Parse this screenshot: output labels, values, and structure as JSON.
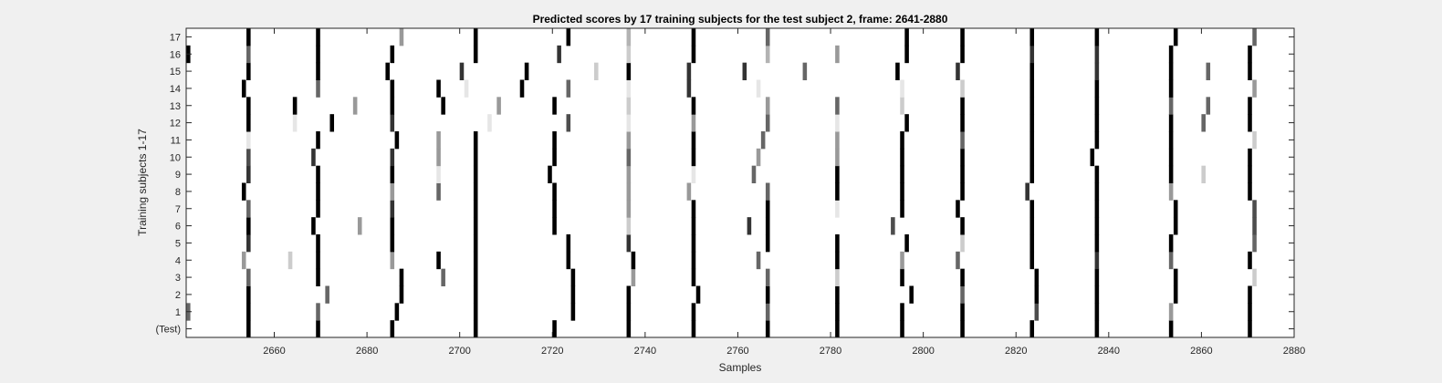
{
  "chart_data": {
    "type": "heatmap",
    "title": "Predicted scores by 17 training subjects for the test subject 2, frame: 2641-2880",
    "xlabel": "Samples",
    "ylabel": "Training subjects 1-17",
    "xlim": [
      2641,
      2880
    ],
    "xticks": [
      2660,
      2680,
      2700,
      2720,
      2740,
      2760,
      2780,
      2800,
      2820,
      2840,
      2860,
      2880
    ],
    "row_labels": [
      "(Test)",
      "1",
      "2",
      "3",
      "4",
      "5",
      "6",
      "7",
      "8",
      "9",
      "10",
      "11",
      "12",
      "13",
      "14",
      "15",
      "16",
      "17"
    ],
    "colormap": "gray (0 = white, 1 = black)",
    "cells": [
      {
        "row": "(Test)",
        "marks": [
          [
            2654,
            1
          ],
          [
            2669,
            1
          ],
          [
            2685,
            1
          ],
          [
            2703,
            1
          ],
          [
            2720,
            1
          ],
          [
            2736,
            1
          ],
          [
            2750,
            1
          ],
          [
            2766,
            1
          ],
          [
            2781,
            1
          ],
          [
            2795,
            1
          ],
          [
            2808,
            1
          ],
          [
            2823,
            1
          ],
          [
            2837,
            1
          ],
          [
            2853,
            1
          ],
          [
            2870,
            1
          ]
        ]
      },
      {
        "row": "1",
        "marks": [
          [
            2641,
            0.6
          ],
          [
            2654,
            1
          ],
          [
            2669,
            0.6
          ],
          [
            2686,
            1
          ],
          [
            2703,
            1
          ],
          [
            2724,
            1
          ],
          [
            2736,
            1
          ],
          [
            2750,
            1
          ],
          [
            2766,
            0.6
          ],
          [
            2781,
            1
          ],
          [
            2795,
            1
          ],
          [
            2808,
            1
          ],
          [
            2824,
            0.7
          ],
          [
            2837,
            1
          ],
          [
            2853,
            0.4
          ],
          [
            2870,
            1
          ]
        ]
      },
      {
        "row": "2",
        "marks": [
          [
            2654,
            1
          ],
          [
            2671,
            0.6
          ],
          [
            2687,
            1
          ],
          [
            2703,
            1
          ],
          [
            2724,
            1
          ],
          [
            2736,
            1
          ],
          [
            2751,
            1
          ],
          [
            2766,
            1
          ],
          [
            2781,
            1
          ],
          [
            2797,
            1
          ],
          [
            2808,
            0.6
          ],
          [
            2824,
            1
          ],
          [
            2837,
            1
          ],
          [
            2854,
            1
          ],
          [
            2870,
            1
          ]
        ]
      },
      {
        "row": "3",
        "marks": [
          [
            2654,
            0.6
          ],
          [
            2669,
            1
          ],
          [
            2687,
            1
          ],
          [
            2696,
            0.6
          ],
          [
            2703,
            1
          ],
          [
            2724,
            1
          ],
          [
            2737,
            0.4
          ],
          [
            2750,
            1
          ],
          [
            2766,
            0.6
          ],
          [
            2781,
            0.2
          ],
          [
            2795,
            1
          ],
          [
            2808,
            1
          ],
          [
            2824,
            1
          ],
          [
            2837,
            1
          ],
          [
            2854,
            1
          ],
          [
            2871,
            0.2
          ]
        ]
      },
      {
        "row": "4",
        "marks": [
          [
            2653,
            0.4
          ],
          [
            2663,
            0.2
          ],
          [
            2669,
            1
          ],
          [
            2685,
            0.4
          ],
          [
            2695,
            1
          ],
          [
            2703,
            1
          ],
          [
            2723,
            1
          ],
          [
            2737,
            1
          ],
          [
            2750,
            1
          ],
          [
            2764,
            0.6
          ],
          [
            2781,
            1
          ],
          [
            2795,
            0.4
          ],
          [
            2807,
            0.6
          ],
          [
            2823,
            1
          ],
          [
            2837,
            0.8
          ],
          [
            2853,
            0.6
          ],
          [
            2870,
            1
          ]
        ]
      },
      {
        "row": "5",
        "marks": [
          [
            2654,
            0.8
          ],
          [
            2669,
            1
          ],
          [
            2685,
            1
          ],
          [
            2703,
            1
          ],
          [
            2723,
            1
          ],
          [
            2736,
            0.8
          ],
          [
            2750,
            1
          ],
          [
            2766,
            1
          ],
          [
            2781,
            1
          ],
          [
            2796,
            1
          ],
          [
            2808,
            0.2
          ],
          [
            2823,
            1
          ],
          [
            2837,
            1
          ],
          [
            2853,
            1
          ],
          [
            2871,
            0.6
          ]
        ]
      },
      {
        "row": "6",
        "marks": [
          [
            2654,
            1
          ],
          [
            2668,
            1
          ],
          [
            2678,
            0.4
          ],
          [
            2685,
            1
          ],
          [
            2703,
            1
          ],
          [
            2720,
            1
          ],
          [
            2736,
            0.2
          ],
          [
            2750,
            1
          ],
          [
            2762,
            0.8
          ],
          [
            2766,
            1
          ],
          [
            2793,
            0.7
          ],
          [
            2808,
            1
          ],
          [
            2823,
            1
          ],
          [
            2837,
            1
          ],
          [
            2854,
            1
          ],
          [
            2871,
            0.7
          ]
        ]
      },
      {
        "row": "7",
        "marks": [
          [
            2654,
            0.6
          ],
          [
            2669,
            1
          ],
          [
            2685,
            0.8
          ],
          [
            2703,
            1
          ],
          [
            2720,
            1
          ],
          [
            2736,
            0.4
          ],
          [
            2750,
            1
          ],
          [
            2766,
            1
          ],
          [
            2781,
            0.1
          ],
          [
            2795,
            1
          ],
          [
            2807,
            1
          ],
          [
            2823,
            1
          ],
          [
            2837,
            1
          ],
          [
            2854,
            1
          ],
          [
            2871,
            0.7
          ]
        ]
      },
      {
        "row": "8",
        "marks": [
          [
            2653,
            1
          ],
          [
            2669,
            1
          ],
          [
            2685,
            0.4
          ],
          [
            2695,
            0.6
          ],
          [
            2703,
            1
          ],
          [
            2720,
            1
          ],
          [
            2736,
            0.4
          ],
          [
            2749,
            0.4
          ],
          [
            2766,
            0.6
          ],
          [
            2781,
            1
          ],
          [
            2795,
            1
          ],
          [
            2808,
            1
          ],
          [
            2822,
            0.8
          ],
          [
            2837,
            1
          ],
          [
            2853,
            0.4
          ],
          [
            2870,
            1
          ]
        ]
      },
      {
        "row": "9",
        "marks": [
          [
            2654,
            0.8
          ],
          [
            2669,
            1
          ],
          [
            2685,
            1
          ],
          [
            2695,
            0.1
          ],
          [
            2703,
            1
          ],
          [
            2719,
            1
          ],
          [
            2736,
            0.4
          ],
          [
            2750,
            0.1
          ],
          [
            2763,
            0.6
          ],
          [
            2781,
            1
          ],
          [
            2795,
            1
          ],
          [
            2808,
            1
          ],
          [
            2823,
            1
          ],
          [
            2837,
            1
          ],
          [
            2853,
            1
          ],
          [
            2860,
            0.2
          ],
          [
            2870,
            1
          ]
        ]
      },
      {
        "row": "10",
        "marks": [
          [
            2654,
            0.7
          ],
          [
            2668,
            0.8
          ],
          [
            2685,
            0.8
          ],
          [
            2695,
            0.4
          ],
          [
            2703,
            1
          ],
          [
            2720,
            1
          ],
          [
            2736,
            0.6
          ],
          [
            2750,
            1
          ],
          [
            2764,
            0.4
          ],
          [
            2781,
            0.4
          ],
          [
            2795,
            1
          ],
          [
            2808,
            1
          ],
          [
            2823,
            1
          ],
          [
            2836,
            1
          ],
          [
            2853,
            1
          ],
          [
            2870,
            1
          ]
        ]
      },
      {
        "row": "11",
        "marks": [
          [
            2654,
            0.1
          ],
          [
            2669,
            1
          ],
          [
            2686,
            1
          ],
          [
            2695,
            0.4
          ],
          [
            2703,
            1
          ],
          [
            2720,
            1
          ],
          [
            2736,
            0.4
          ],
          [
            2750,
            1
          ],
          [
            2765,
            0.6
          ],
          [
            2781,
            0.4
          ],
          [
            2795,
            1
          ],
          [
            2808,
            0.6
          ],
          [
            2823,
            1
          ],
          [
            2837,
            1
          ],
          [
            2853,
            1
          ],
          [
            2871,
            0.2
          ]
        ]
      },
      {
        "row": "12",
        "marks": [
          [
            2654,
            1
          ],
          [
            2664,
            0.1
          ],
          [
            2672,
            1
          ],
          [
            2685,
            0.8
          ],
          [
            2706,
            0.1
          ],
          [
            2723,
            0.7
          ],
          [
            2736,
            0.1
          ],
          [
            2750,
            0.4
          ],
          [
            2766,
            0.6
          ],
          [
            2781,
            0.1
          ],
          [
            2796,
            1
          ],
          [
            2808,
            1
          ],
          [
            2823,
            1
          ],
          [
            2837,
            1
          ],
          [
            2853,
            1
          ],
          [
            2860,
            0.6
          ],
          [
            2870,
            1
          ]
        ]
      },
      {
        "row": "13",
        "marks": [
          [
            2654,
            1
          ],
          [
            2664,
            1
          ],
          [
            2677,
            0.4
          ],
          [
            2685,
            1
          ],
          [
            2696,
            1
          ],
          [
            2708,
            0.4
          ],
          [
            2720,
            1
          ],
          [
            2736,
            0.2
          ],
          [
            2750,
            1
          ],
          [
            2766,
            0.4
          ],
          [
            2781,
            0.6
          ],
          [
            2795,
            0.2
          ],
          [
            2808,
            1
          ],
          [
            2823,
            1
          ],
          [
            2837,
            1
          ],
          [
            2853,
            0.6
          ],
          [
            2861,
            0.6
          ],
          [
            2870,
            1
          ]
        ]
      },
      {
        "row": "14",
        "marks": [
          [
            2653,
            1
          ],
          [
            2669,
            0.6
          ],
          [
            2685,
            1
          ],
          [
            2695,
            1
          ],
          [
            2701,
            0.1
          ],
          [
            2713,
            1
          ],
          [
            2723,
            0.6
          ],
          [
            2736,
            0.1
          ],
          [
            2749,
            0.8
          ],
          [
            2764,
            0.1
          ],
          [
            2795,
            0.1
          ],
          [
            2808,
            0.2
          ],
          [
            2823,
            1
          ],
          [
            2837,
            1
          ],
          [
            2853,
            1
          ],
          [
            2871,
            0.4
          ]
        ]
      },
      {
        "row": "15",
        "marks": [
          [
            2654,
            1
          ],
          [
            2669,
            1
          ],
          [
            2684,
            1
          ],
          [
            2700,
            0.8
          ],
          [
            2714,
            1
          ],
          [
            2729,
            0.2
          ],
          [
            2736,
            1
          ],
          [
            2749,
            0.8
          ],
          [
            2761,
            0.8
          ],
          [
            2774,
            0.6
          ],
          [
            2794,
            1
          ],
          [
            2807,
            0.8
          ],
          [
            2823,
            1
          ],
          [
            2837,
            0.8
          ],
          [
            2853,
            1
          ],
          [
            2861,
            0.6
          ],
          [
            2870,
            1
          ]
        ]
      },
      {
        "row": "16",
        "marks": [
          [
            2641,
            1
          ],
          [
            2654,
            0.6
          ],
          [
            2669,
            1
          ],
          [
            2685,
            1
          ],
          [
            2703,
            1
          ],
          [
            2721,
            0.8
          ],
          [
            2736,
            0.2
          ],
          [
            2750,
            1
          ],
          [
            2766,
            0.3
          ],
          [
            2781,
            0.4
          ],
          [
            2796,
            1
          ],
          [
            2808,
            1
          ],
          [
            2823,
            0.8
          ],
          [
            2837,
            0.8
          ],
          [
            2853,
            1
          ],
          [
            2870,
            1
          ]
        ]
      },
      {
        "row": "17",
        "marks": [
          [
            2654,
            1
          ],
          [
            2669,
            1
          ],
          [
            2687,
            0.4
          ],
          [
            2703,
            1
          ],
          [
            2723,
            1
          ],
          [
            2736,
            0.3
          ],
          [
            2750,
            1
          ],
          [
            2766,
            0.6
          ],
          [
            2796,
            1
          ],
          [
            2808,
            1
          ],
          [
            2823,
            1
          ],
          [
            2837,
            1
          ],
          [
            2854,
            1
          ],
          [
            2871,
            0.6
          ]
        ]
      }
    ]
  }
}
